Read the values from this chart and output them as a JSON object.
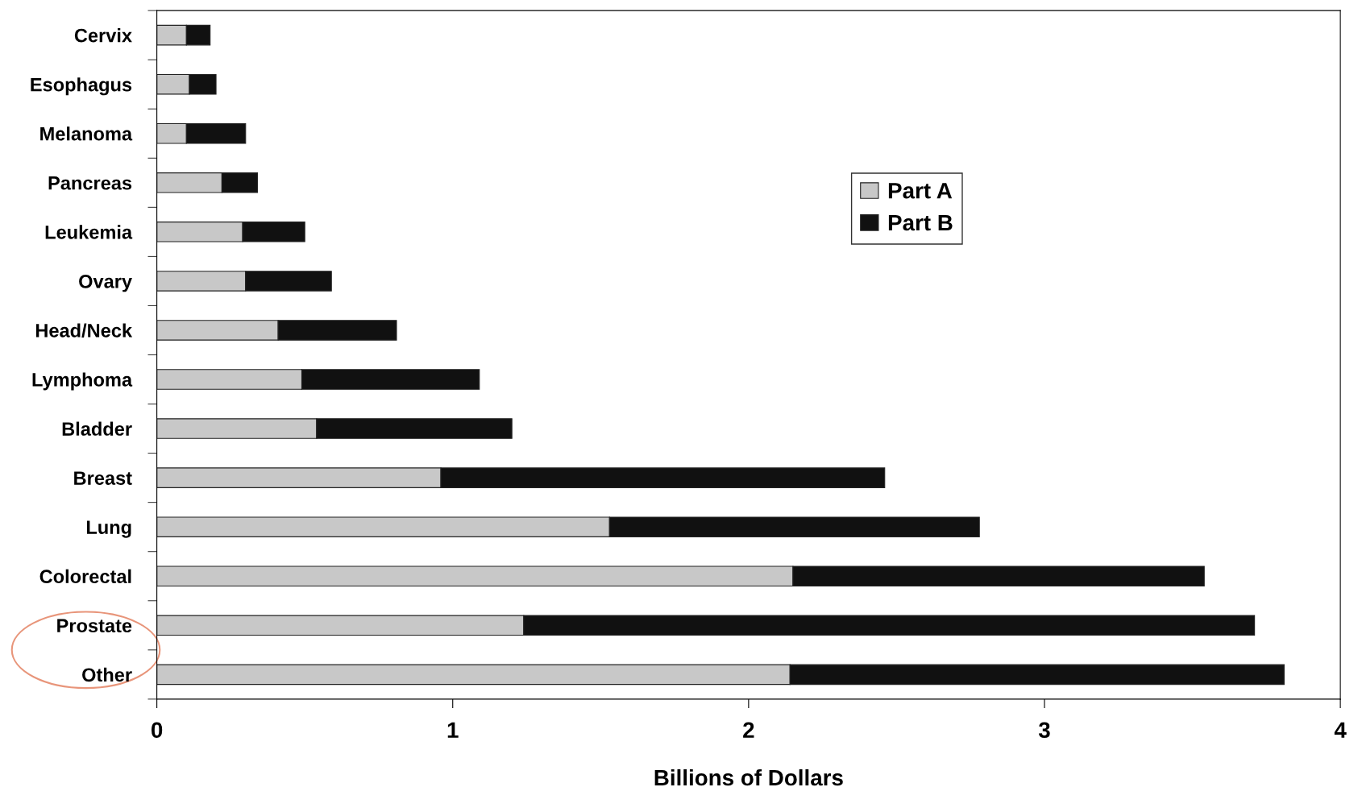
{
  "chart_data": {
    "type": "bar",
    "orientation": "horizontal",
    "stacked": true,
    "categories": [
      "Cervix",
      "Esophagus",
      "Melanoma",
      "Pancreas",
      "Leukemia",
      "Ovary",
      "Head/Neck",
      "Lymphoma",
      "Bladder",
      "Breast",
      "Lung",
      "Colorectal",
      "Prostate",
      "Other"
    ],
    "series": [
      {
        "name": "Part A",
        "color": "#c8c8c8",
        "values": [
          0.1,
          0.11,
          0.1,
          0.22,
          0.29,
          0.3,
          0.41,
          0.49,
          0.54,
          0.96,
          1.53,
          2.15,
          1.24,
          2.14
        ]
      },
      {
        "name": "Part B",
        "color": "#111111",
        "values": [
          0.08,
          0.09,
          0.2,
          0.12,
          0.21,
          0.29,
          0.4,
          0.6,
          0.66,
          1.5,
          1.25,
          1.39,
          2.47,
          1.67
        ]
      }
    ],
    "xlabel": "Billions of Dollars",
    "xlim": [
      0,
      4
    ],
    "xticks": [
      0,
      1,
      2,
      3,
      4
    ],
    "grid": false,
    "legend": "top right"
  }
}
